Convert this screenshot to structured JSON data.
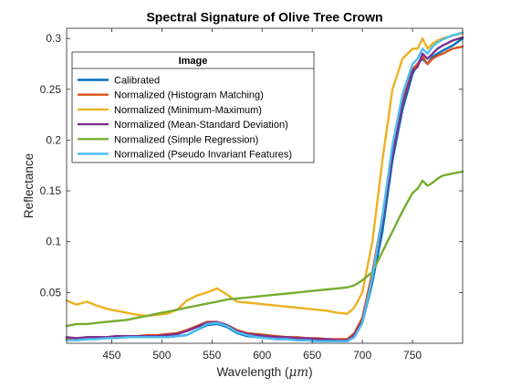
{
  "chart_data": {
    "type": "line",
    "title": "Spectral Signature of Olive Tree Crown",
    "xlabel": "Wavelength (",
    "xlabel_unit": "μm",
    "xlabel_close": ")",
    "ylabel": "Reflectance",
    "xlim": [
      405,
      800
    ],
    "ylim": [
      0,
      0.31
    ],
    "x_ticks": [
      450,
      500,
      550,
      600,
      650,
      700,
      750
    ],
    "y_ticks": [
      0.05,
      0.1,
      0.15,
      0.2,
      0.25,
      0.3
    ],
    "y_tick_labels": [
      "0.05",
      "0.1",
      "0.15",
      "0.2",
      "0.25",
      "0.3"
    ],
    "grid": false,
    "legend": {
      "title": "Image",
      "placement": "top-left"
    },
    "x": [
      405,
      415,
      425,
      435,
      445,
      455,
      465,
      475,
      485,
      495,
      505,
      515,
      525,
      535,
      545,
      555,
      565,
      575,
      585,
      595,
      605,
      615,
      625,
      635,
      645,
      655,
      665,
      675,
      685,
      692,
      700,
      710,
      720,
      730,
      740,
      750,
      755,
      760,
      765,
      770,
      775,
      780,
      790,
      800
    ],
    "series": [
      {
        "name": "Calibrated",
        "color": "#0072BD",
        "values": [
          0.004,
          0.003,
          0.004,
          0.005,
          0.005,
          0.006,
          0.006,
          0.006,
          0.006,
          0.006,
          0.006,
          0.007,
          0.008,
          0.013,
          0.018,
          0.019,
          0.016,
          0.01,
          0.007,
          0.006,
          0.005,
          0.004,
          0.004,
          0.003,
          0.003,
          0.002,
          0.002,
          0.002,
          0.002,
          0.006,
          0.02,
          0.06,
          0.11,
          0.18,
          0.23,
          0.265,
          0.275,
          0.28,
          0.275,
          0.282,
          0.285,
          0.288,
          0.293,
          0.3
        ]
      },
      {
        "name": "Normalized (Histogram Matching)",
        "color": "#D95319",
        "values": [
          0.005,
          0.004,
          0.006,
          0.006,
          0.006,
          0.007,
          0.007,
          0.007,
          0.008,
          0.008,
          0.009,
          0.01,
          0.013,
          0.017,
          0.021,
          0.021,
          0.018,
          0.013,
          0.01,
          0.009,
          0.008,
          0.007,
          0.006,
          0.006,
          0.005,
          0.005,
          0.004,
          0.004,
          0.004,
          0.01,
          0.025,
          0.07,
          0.125,
          0.19,
          0.24,
          0.27,
          0.275,
          0.282,
          0.275,
          0.28,
          0.283,
          0.285,
          0.29,
          0.292
        ]
      },
      {
        "name": "Normalized (Minimum-Maximum)",
        "color": "#EDB120",
        "values": [
          0.042,
          0.038,
          0.041,
          0.037,
          0.034,
          0.032,
          0.03,
          0.028,
          0.027,
          0.028,
          0.029,
          0.033,
          0.042,
          0.047,
          0.05,
          0.054,
          0.048,
          0.041,
          0.04,
          0.039,
          0.038,
          0.037,
          0.036,
          0.035,
          0.034,
          0.033,
          0.032,
          0.03,
          0.029,
          0.035,
          0.05,
          0.1,
          0.18,
          0.25,
          0.28,
          0.29,
          0.29,
          0.3,
          0.29,
          0.295,
          0.298,
          0.3,
          0.303,
          0.305
        ]
      },
      {
        "name": "Normalized (Mean-Standard Deviation)",
        "color": "#7E2F8E",
        "values": [
          0.006,
          0.005,
          0.006,
          0.006,
          0.006,
          0.007,
          0.007,
          0.007,
          0.007,
          0.007,
          0.008,
          0.009,
          0.012,
          0.016,
          0.02,
          0.021,
          0.018,
          0.012,
          0.009,
          0.008,
          0.007,
          0.006,
          0.006,
          0.005,
          0.005,
          0.004,
          0.004,
          0.003,
          0.003,
          0.008,
          0.022,
          0.065,
          0.12,
          0.185,
          0.235,
          0.268,
          0.272,
          0.285,
          0.28,
          0.285,
          0.29,
          0.293,
          0.298,
          0.301
        ]
      },
      {
        "name": "Normalized (Simple Regression)",
        "color": "#77AC30",
        "values": [
          0.017,
          0.019,
          0.019,
          0.02,
          0.021,
          0.022,
          0.023,
          0.025,
          0.027,
          0.029,
          0.031,
          0.033,
          0.035,
          0.037,
          0.039,
          0.041,
          0.043,
          0.044,
          0.045,
          0.046,
          0.047,
          0.048,
          0.049,
          0.05,
          0.051,
          0.052,
          0.053,
          0.054,
          0.055,
          0.057,
          0.062,
          0.07,
          0.09,
          0.11,
          0.13,
          0.148,
          0.152,
          0.16,
          0.155,
          0.158,
          0.162,
          0.165,
          0.167,
          0.169
        ]
      },
      {
        "name": "Normalized (Pseudo Invariant Features)",
        "color": "#4DBEEE",
        "values": [
          0.003,
          0.003,
          0.004,
          0.004,
          0.005,
          0.005,
          0.006,
          0.006,
          0.006,
          0.006,
          0.006,
          0.007,
          0.008,
          0.013,
          0.019,
          0.02,
          0.017,
          0.011,
          0.008,
          0.006,
          0.005,
          0.004,
          0.004,
          0.003,
          0.003,
          0.002,
          0.002,
          0.002,
          0.002,
          0.006,
          0.02,
          0.065,
          0.125,
          0.195,
          0.245,
          0.275,
          0.28,
          0.29,
          0.285,
          0.292,
          0.296,
          0.299,
          0.303,
          0.306
        ]
      }
    ]
  }
}
